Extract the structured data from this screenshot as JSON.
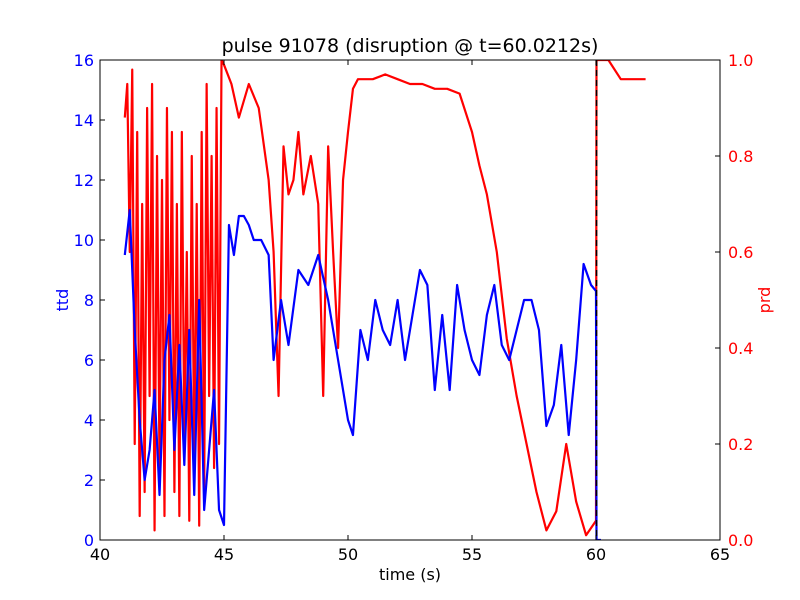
{
  "chart_data": {
    "type": "line",
    "title": "pulse 91078 (disruption @ t=60.0212s)",
    "xlabel": "time (s)",
    "ylabel_left": "ttd",
    "ylabel_right": "prd",
    "xlim": [
      40,
      65
    ],
    "ylim_left": [
      0,
      16
    ],
    "ylim_right": [
      0,
      1.0
    ],
    "x_ticks": [
      "40",
      "45",
      "50",
      "55",
      "60",
      "65"
    ],
    "y_ticks_left": [
      "0",
      "2",
      "4",
      "6",
      "8",
      "10",
      "12",
      "14",
      "16"
    ],
    "y_ticks_right": [
      "0.0",
      "0.2",
      "0.4",
      "0.6",
      "0.8",
      "1.0"
    ],
    "grid": false,
    "disruption_time": 60.0212,
    "colors": {
      "ttd": "#0000ff",
      "prd": "#ff0000",
      "marker": "#000000",
      "left_axis": "#0000ff",
      "right_axis": "#ff0000"
    },
    "series": [
      {
        "axis": "left",
        "color": "#0000ff",
        "x": [
          41.0,
          41.2,
          41.4,
          41.6,
          41.8,
          42.0,
          42.2,
          42.4,
          42.6,
          42.8,
          43.0,
          43.2,
          43.4,
          43.6,
          43.8,
          44.0,
          44.2,
          44.4,
          44.6,
          44.8,
          45.0,
          45.2,
          45.4,
          45.6,
          45.8,
          46.0,
          46.2,
          46.5,
          46.8,
          47.0,
          47.3,
          47.6,
          48.0,
          48.4,
          48.8,
          49.2,
          49.6,
          50.0,
          50.2,
          50.5,
          50.8,
          51.1,
          51.4,
          51.7,
          52.0,
          52.3,
          52.6,
          52.9,
          53.2,
          53.5,
          53.8,
          54.1,
          54.4,
          54.7,
          55.0,
          55.3,
          55.6,
          55.9,
          56.2,
          56.5,
          56.8,
          57.1,
          57.4,
          57.7,
          58.0,
          58.3,
          58.6,
          58.9,
          59.2,
          59.5,
          59.8,
          60.0,
          60.02,
          60.1,
          60.2
        ],
        "y": [
          9.5,
          11.0,
          7.0,
          4.0,
          2.0,
          3.0,
          5.0,
          1.5,
          6.0,
          7.5,
          3.0,
          6.5,
          2.5,
          7.0,
          1.5,
          8.0,
          1.0,
          3.0,
          5.0,
          1.0,
          0.5,
          10.5,
          9.5,
          10.8,
          10.8,
          10.5,
          10.0,
          10.0,
          9.5,
          6.0,
          8.0,
          6.5,
          9.0,
          8.5,
          9.5,
          8.0,
          6.0,
          4.0,
          3.5,
          7.0,
          6.0,
          8.0,
          7.0,
          6.5,
          8.0,
          6.0,
          7.5,
          9.0,
          8.5,
          5.0,
          7.5,
          5.0,
          8.5,
          7.0,
          6.0,
          5.5,
          7.5,
          8.5,
          6.5,
          6.0,
          7.0,
          8.0,
          8.0,
          7.0,
          3.8,
          4.5,
          6.5,
          3.5,
          6.0,
          9.2,
          8.5,
          8.3,
          0.0,
          0.0,
          0.0
        ]
      },
      {
        "axis": "right",
        "color": "#ff0000",
        "x": [
          41.0,
          41.1,
          41.2,
          41.3,
          41.4,
          41.5,
          41.6,
          41.7,
          41.8,
          41.9,
          42.0,
          42.1,
          42.2,
          42.3,
          42.4,
          42.5,
          42.6,
          42.7,
          42.8,
          42.9,
          43.0,
          43.1,
          43.2,
          43.3,
          43.4,
          43.5,
          43.6,
          43.7,
          43.8,
          43.9,
          44.0,
          44.1,
          44.2,
          44.3,
          44.4,
          44.5,
          44.6,
          44.7,
          44.8,
          44.9,
          45.0,
          45.3,
          45.6,
          46.0,
          46.4,
          46.8,
          47.0,
          47.2,
          47.4,
          47.6,
          47.8,
          48.0,
          48.2,
          48.5,
          48.8,
          49.0,
          49.2,
          49.4,
          49.6,
          49.8,
          50.0,
          50.2,
          50.4,
          50.6,
          51.0,
          51.5,
          52.0,
          52.5,
          53.0,
          53.5,
          54.0,
          54.5,
          55.0,
          55.3,
          55.6,
          56.0,
          56.4,
          56.8,
          57.2,
          57.6,
          58.0,
          58.4,
          58.8,
          59.2,
          59.6,
          60.0,
          60.02,
          60.2,
          60.5,
          61.0,
          61.5,
          62.0
        ],
        "y": [
          0.88,
          0.95,
          0.6,
          0.98,
          0.2,
          0.85,
          0.05,
          0.7,
          0.1,
          0.9,
          0.3,
          0.95,
          0.02,
          0.8,
          0.15,
          0.75,
          0.05,
          0.9,
          0.25,
          0.85,
          0.1,
          0.7,
          0.05,
          0.85,
          0.2,
          0.6,
          0.04,
          0.8,
          0.15,
          0.7,
          0.03,
          0.85,
          0.1,
          0.95,
          0.3,
          0.8,
          0.15,
          0.9,
          0.2,
          1.0,
          0.99,
          0.95,
          0.88,
          0.95,
          0.9,
          0.75,
          0.6,
          0.3,
          0.82,
          0.72,
          0.75,
          0.85,
          0.72,
          0.8,
          0.7,
          0.3,
          0.82,
          0.6,
          0.4,
          0.75,
          0.85,
          0.94,
          0.96,
          0.96,
          0.96,
          0.97,
          0.96,
          0.95,
          0.95,
          0.94,
          0.94,
          0.93,
          0.85,
          0.78,
          0.72,
          0.6,
          0.42,
          0.3,
          0.2,
          0.1,
          0.02,
          0.06,
          0.2,
          0.08,
          0.01,
          0.04,
          1.0,
          1.0,
          1.0,
          0.96,
          0.96,
          0.96
        ]
      }
    ]
  }
}
